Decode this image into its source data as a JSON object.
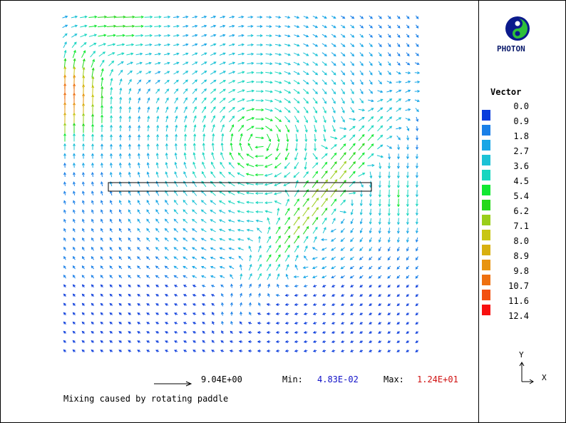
{
  "brand": {
    "name": "PHOTON"
  },
  "legend": {
    "title": "Vector",
    "entries": [
      {
        "value": "0.0",
        "color": null
      },
      {
        "value": "0.9",
        "color": "#0a3cdc"
      },
      {
        "value": "1.8",
        "color": "#1a80e8"
      },
      {
        "value": "2.7",
        "color": "#18a6e6"
      },
      {
        "value": "3.6",
        "color": "#1cc2d6"
      },
      {
        "value": "4.5",
        "color": "#18d6c0"
      },
      {
        "value": "5.4",
        "color": "#10e832"
      },
      {
        "value": "6.2",
        "color": "#24d81a"
      },
      {
        "value": "7.1",
        "color": "#9ace1a"
      },
      {
        "value": "8.0",
        "color": "#c8c614"
      },
      {
        "value": "8.9",
        "color": "#d8b010"
      },
      {
        "value": "9.8",
        "color": "#e89410"
      },
      {
        "value": "10.7",
        "color": "#ee7010"
      },
      {
        "value": "11.6",
        "color": "#f25010"
      },
      {
        "value": "12.4",
        "color": "#f81010"
      }
    ]
  },
  "reference": {
    "value": "9.04E+00"
  },
  "range": {
    "min_label": "Min:",
    "min_value": "4.83E-02",
    "max_label": "Max:",
    "max_value": "1.24E+01"
  },
  "caption": "Mixing caused by rotating paddle",
  "axes": {
    "y": "Y",
    "x": "X"
  }
}
